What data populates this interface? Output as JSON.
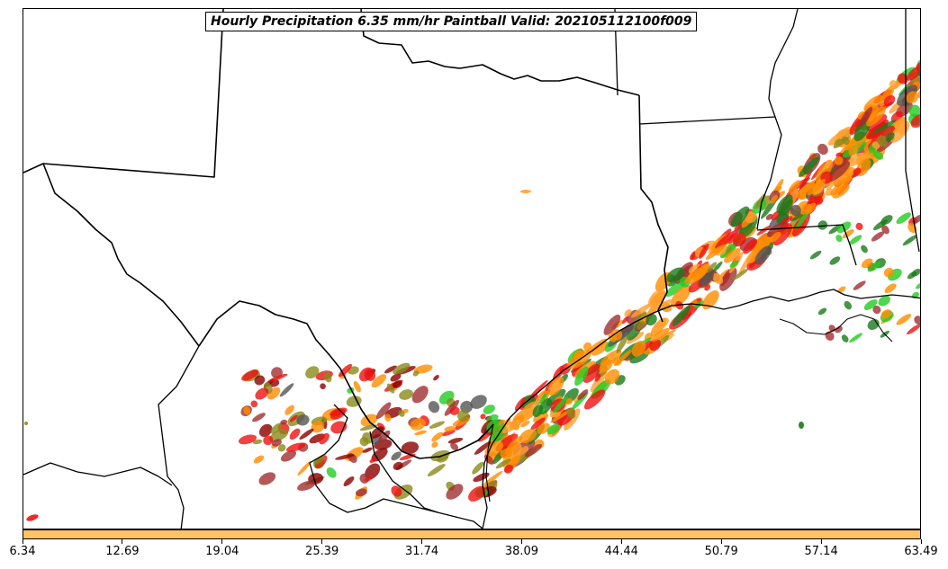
{
  "title": "Hourly Precipitation 6.35 mm/hr Paintball Valid: 202105112100f009",
  "colorbar": {
    "color": "#ffc266",
    "ticks": [
      "6.34",
      "12.69",
      "19.04",
      "25.39",
      "31.74",
      "38.09",
      "44.44",
      "50.79",
      "57.14",
      "63.49"
    ]
  },
  "palette": {
    "red": "#ee1111",
    "orange": "#ff8c00",
    "light-orange": "#ffa030",
    "dark-red": "#8b0000",
    "maroon": "#a03030",
    "green": "#22cc22",
    "dark-green": "#1a7a1a",
    "olive": "#8a8a1a",
    "gray": "#555555"
  }
}
